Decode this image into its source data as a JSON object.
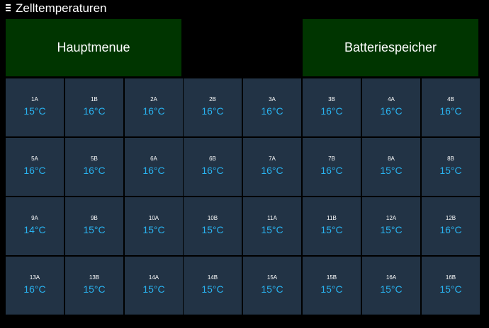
{
  "header": {
    "title": "Zelltemperaturen",
    "menu_icon": "hamburger-menu-icon"
  },
  "nav": {
    "main_menu_label": "Hauptmenue",
    "battery_label": "Batteriespeicher",
    "button_color": "#003500"
  },
  "colors": {
    "background": "#000000",
    "cell_background": "#223345",
    "temperature_text": "#29b3f0"
  },
  "cells": [
    {
      "label": "1A",
      "temp": "15°C"
    },
    {
      "label": "1B",
      "temp": "16°C"
    },
    {
      "label": "2A",
      "temp": "16°C"
    },
    {
      "label": "2B",
      "temp": "16°C"
    },
    {
      "label": "3A",
      "temp": "16°C"
    },
    {
      "label": "3B",
      "temp": "16°C"
    },
    {
      "label": "4A",
      "temp": "16°C"
    },
    {
      "label": "4B",
      "temp": "16°C"
    },
    {
      "label": "5A",
      "temp": "16°C"
    },
    {
      "label": "5B",
      "temp": "16°C"
    },
    {
      "label": "6A",
      "temp": "16°C"
    },
    {
      "label": "6B",
      "temp": "16°C"
    },
    {
      "label": "7A",
      "temp": "16°C"
    },
    {
      "label": "7B",
      "temp": "16°C"
    },
    {
      "label": "8A",
      "temp": "15°C"
    },
    {
      "label": "8B",
      "temp": "15°C"
    },
    {
      "label": "9A",
      "temp": "14°C"
    },
    {
      "label": "9B",
      "temp": "15°C"
    },
    {
      "label": "10A",
      "temp": "15°C"
    },
    {
      "label": "10B",
      "temp": "15°C"
    },
    {
      "label": "11A",
      "temp": "15°C"
    },
    {
      "label": "11B",
      "temp": "15°C"
    },
    {
      "label": "12A",
      "temp": "15°C"
    },
    {
      "label": "12B",
      "temp": "16°C"
    },
    {
      "label": "13A",
      "temp": "16°C"
    },
    {
      "label": "13B",
      "temp": "15°C"
    },
    {
      "label": "14A",
      "temp": "15°C"
    },
    {
      "label": "14B",
      "temp": "15°C"
    },
    {
      "label": "15A",
      "temp": "15°C"
    },
    {
      "label": "15B",
      "temp": "15°C"
    },
    {
      "label": "16A",
      "temp": "15°C"
    },
    {
      "label": "16B",
      "temp": "15°C"
    }
  ]
}
